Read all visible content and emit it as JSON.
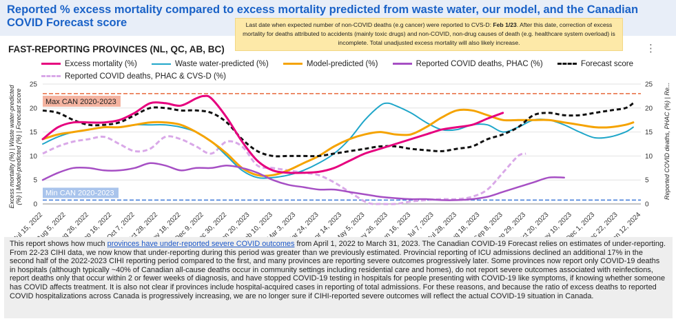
{
  "title": "Reported % excess mortality compared to excess mortality predicted from waste water, our model, and the Canadian COVID Forecast score",
  "note": {
    "text_before": "Last date when expected number of non-COVID deaths  (e.g cancer)  were reported to CVS-D: ",
    "bold": "Feb 1/23",
    "text_after": ". After this date, correction of excess mortality for deaths attributed to accidents (mainly toxic drugs) and non-COVID, non-drug causes of death (e.g. healthcare system overload) is incomplete. Total unadjusted excess mortality will also likely increase."
  },
  "subtitle": "FAST-REPORTING PROVINCES (NL, QC, AB, BC)",
  "menu_icon": "more-vert-icon",
  "report": {
    "text_before": "This report shows how much ",
    "link_text": "provinces have under-reported severe COVID outcomes",
    "text_after": " from April 1, 2022 to March 31, 2023. The Canadian COVID-19 Forecast relies on estimates of under-reporting. From 22-23 CIHI data, we now know that under-reporting during this period was greater than we previously estimated. Provincial reporting of ICU admissions declined an additional 17% in the second half of the 2022-2023 CIHI reporting period compared to the first, and many provinces are reporting severe outcomes progressively later. Some provinces now report only COVID-19 deaths in hospitals (although typically ~40% of Canadian all-cause deaths occur in community settings including residential care and homes), do not report severe outcomes associated with reinfections, report deaths only that occur within 2 or fewer weeks of diagnosis, and have stopped COVID-19 testing in hospitals for people presenting with COVID-19 like symptoms, if knowing whether someone has COVID affects treatment. It is also not clear if provinces include hospital-acquired cases in reporting of total admissions. For these reasons, and because the ratio of excess deaths to reported COVID hospitalizations across Canada is progressively increasing, we are no longer sure if CIHI-reported severe outcomes will reflect the actual COVID-19 situation in Canada."
  },
  "chart_data": {
    "type": "line",
    "title": "FAST-REPORTING PROVINCES (NL, QC, AB, BC)",
    "ylabel_left": "Excess mortality (%) | Waste water-predicted (%) | Model-predicted (%) | Forecast score",
    "ylabel_right": "Reported COVID deaths, PHAC (%) | Re...",
    "ylim": [
      0,
      25
    ],
    "yticks": [
      "0",
      "5",
      "10",
      "15",
      "20",
      "25"
    ],
    "xlim": [
      0,
      77
    ],
    "xticks": [
      {
        "x": 0,
        "label": "Jul 15, 2022"
      },
      {
        "x": 3,
        "label": "Aug 5, 2022"
      },
      {
        "x": 6,
        "label": "Aug 26, 2022"
      },
      {
        "x": 9,
        "label": "Sep 16, 2022"
      },
      {
        "x": 12,
        "label": "Oct 7, 2022"
      },
      {
        "x": 15,
        "label": "Oct 28, 2022"
      },
      {
        "x": 18,
        "label": "Nov 18, 2022"
      },
      {
        "x": 21,
        "label": "Dec 9, 2022"
      },
      {
        "x": 24,
        "label": "Dec 30, 2022"
      },
      {
        "x": 27,
        "label": "Jan 20, 2023"
      },
      {
        "x": 30,
        "label": "Feb 10, 2023"
      },
      {
        "x": 33,
        "label": "Mar 3, 2023"
      },
      {
        "x": 36,
        "label": "Mar 24, 2023"
      },
      {
        "x": 39,
        "label": "Apr 14, 2023"
      },
      {
        "x": 42,
        "label": "May 5, 2023"
      },
      {
        "x": 45,
        "label": "May 26, 2023"
      },
      {
        "x": 48,
        "label": "Jun 16, 2023"
      },
      {
        "x": 51,
        "label": "Jul 7, 2023"
      },
      {
        "x": 54,
        "label": "Jul 28, 2023"
      },
      {
        "x": 57,
        "label": "Aug 18, 2023"
      },
      {
        "x": 60,
        "label": "Sep 8, 2023"
      },
      {
        "x": 63,
        "label": "Sep 29, 2023"
      },
      {
        "x": 66,
        "label": "Oct 20, 2023"
      },
      {
        "x": 69,
        "label": "Nov 10, 2023"
      },
      {
        "x": 72,
        "label": "Dec 1, 2023"
      },
      {
        "x": 75,
        "label": "Dec 22, 2023"
      },
      {
        "x": 78,
        "label": "Jan 12, 2024"
      }
    ],
    "reference_lines": [
      {
        "name": "Max CAN 2020-2023",
        "value": 23,
        "color": "#e8683a"
      },
      {
        "name": "Min CAN 2020-2023",
        "value": 0.8,
        "color": "#3c78d8"
      }
    ],
    "series": [
      {
        "name": "Excess mortality (%)",
        "color": "#e6007e",
        "dash": "",
        "width": 3,
        "x": [
          0,
          2,
          4,
          6,
          8,
          10,
          12,
          14,
          16,
          18,
          20,
          21,
          22,
          24,
          26,
          28,
          30,
          32,
          34,
          36,
          38,
          40,
          42,
          44,
          46,
          48,
          50,
          52,
          54,
          56,
          58,
          60
        ],
        "y": [
          13.5,
          16,
          17,
          17,
          17,
          17.5,
          19,
          21,
          21,
          20.5,
          22,
          22.5,
          22,
          18,
          13,
          9,
          7,
          6.5,
          6.5,
          6.7,
          7.5,
          9,
          10.5,
          11.5,
          12.5,
          13.5,
          14.5,
          15.5,
          16,
          16.5,
          17.8,
          19
        ]
      },
      {
        "name": "Waste water-predicted (%)",
        "color": "#1fa6c9",
        "dash": "",
        "width": 2,
        "x": [
          0,
          2,
          4,
          6,
          8,
          10,
          12,
          14,
          16,
          18,
          20,
          22,
          24,
          26,
          28,
          30,
          32,
          34,
          36,
          38,
          40,
          42,
          44,
          45,
          46,
          48,
          50,
          52,
          54,
          56,
          58,
          60,
          62,
          64,
          66,
          68,
          70,
          72,
          74,
          76,
          77
        ],
        "y": [
          12.5,
          14,
          15,
          15.5,
          16,
          16,
          16.5,
          16.5,
          16.5,
          16,
          15,
          13,
          10,
          7,
          5.5,
          5.5,
          6,
          7,
          8.5,
          10.5,
          13.5,
          17.5,
          20.5,
          21,
          20.5,
          19,
          17,
          15.5,
          15.5,
          16.5,
          16.5,
          15,
          16,
          17.5,
          17.5,
          16.5,
          15,
          13.8,
          14,
          15,
          16
        ]
      },
      {
        "name": "Model-predicted (%)",
        "color": "#f5a300",
        "dash": "",
        "width": 3,
        "x": [
          0,
          2,
          4,
          6,
          8,
          10,
          12,
          14,
          16,
          18,
          20,
          22,
          24,
          26,
          28,
          30,
          32,
          34,
          36,
          38,
          40,
          42,
          44,
          46,
          48,
          50,
          52,
          54,
          56,
          58,
          60,
          62,
          64,
          66,
          68,
          70,
          72,
          74,
          76,
          77
        ],
        "y": [
          13.5,
          14.5,
          15,
          15.5,
          16,
          16,
          16.5,
          17,
          17,
          16.5,
          15,
          13,
          10.5,
          7.5,
          6,
          6,
          7,
          8.5,
          10,
          12,
          13.5,
          14.5,
          15,
          14.5,
          14.5,
          16,
          18,
          19.5,
          19.5,
          18.5,
          17.5,
          17.5,
          17.5,
          17.5,
          17,
          16.5,
          16,
          16,
          16.5,
          17
        ]
      },
      {
        "name": "Reported COVID deaths, PHAC (%)",
        "color": "#a64fc4",
        "dash": "",
        "width": 2.5,
        "x": [
          0,
          2,
          4,
          6,
          8,
          10,
          12,
          14,
          16,
          18,
          20,
          22,
          24,
          26,
          28,
          30,
          32,
          34,
          36,
          38,
          40,
          42,
          44,
          46,
          48,
          50,
          52,
          54,
          56,
          58,
          60,
          62,
          64,
          66,
          68
        ],
        "y": [
          5,
          6.5,
          7.5,
          7.5,
          7,
          7,
          7.5,
          8.5,
          8,
          7,
          7.5,
          7.5,
          8,
          7.5,
          6.5,
          5,
          4,
          3.5,
          3,
          3,
          2.5,
          2,
          1.5,
          1.2,
          1,
          1,
          0.8,
          0.8,
          1,
          1.5,
          2.5,
          3.5,
          4.5,
          5.5,
          5.5
        ]
      },
      {
        "name": "Forecast score",
        "color": "#111111",
        "dash": "6,4",
        "width": 3,
        "x": [
          0,
          2,
          4,
          6,
          8,
          10,
          12,
          14,
          16,
          18,
          20,
          22,
          24,
          26,
          28,
          30,
          32,
          34,
          36,
          38,
          40,
          42,
          44,
          46,
          48,
          50,
          52,
          54,
          56,
          58,
          60,
          62,
          64,
          66,
          68,
          70,
          72,
          74,
          76,
          77
        ],
        "y": [
          19.5,
          19,
          17.5,
          16.5,
          16.5,
          17,
          18.5,
          20,
          20,
          19.5,
          19.5,
          19,
          17,
          13.5,
          11,
          10,
          10,
          10,
          10,
          10.5,
          11,
          11.5,
          12,
          12,
          11.5,
          11.2,
          11,
          11.5,
          12,
          13.5,
          14.5,
          16,
          18.5,
          19,
          18.5,
          18.5,
          19,
          19.5,
          20,
          21
        ]
      },
      {
        "name": "Reported COVID deaths, PHAC & CVS-D (%)",
        "color": "#d9a8e8",
        "dash": "7,4",
        "width": 3,
        "x": [
          0,
          2,
          4,
          6,
          8,
          10,
          12,
          14,
          16,
          18,
          20,
          22,
          24,
          26,
          28,
          30,
          32,
          34,
          36,
          38,
          40,
          42,
          43,
          44,
          46,
          48,
          50,
          52,
          54,
          56,
          58,
          60,
          62,
          63
        ],
        "y": [
          10.5,
          12,
          13,
          13.5,
          14,
          12.5,
          11,
          11.5,
          14,
          13.5,
          12,
          10.5,
          13,
          12,
          8,
          7.5,
          7,
          6.5,
          6,
          4.5,
          2.5,
          0.5,
          0,
          0,
          0,
          0.5,
          0.8,
          1,
          1,
          1.5,
          3,
          6.5,
          10,
          10.5
        ]
      }
    ]
  }
}
